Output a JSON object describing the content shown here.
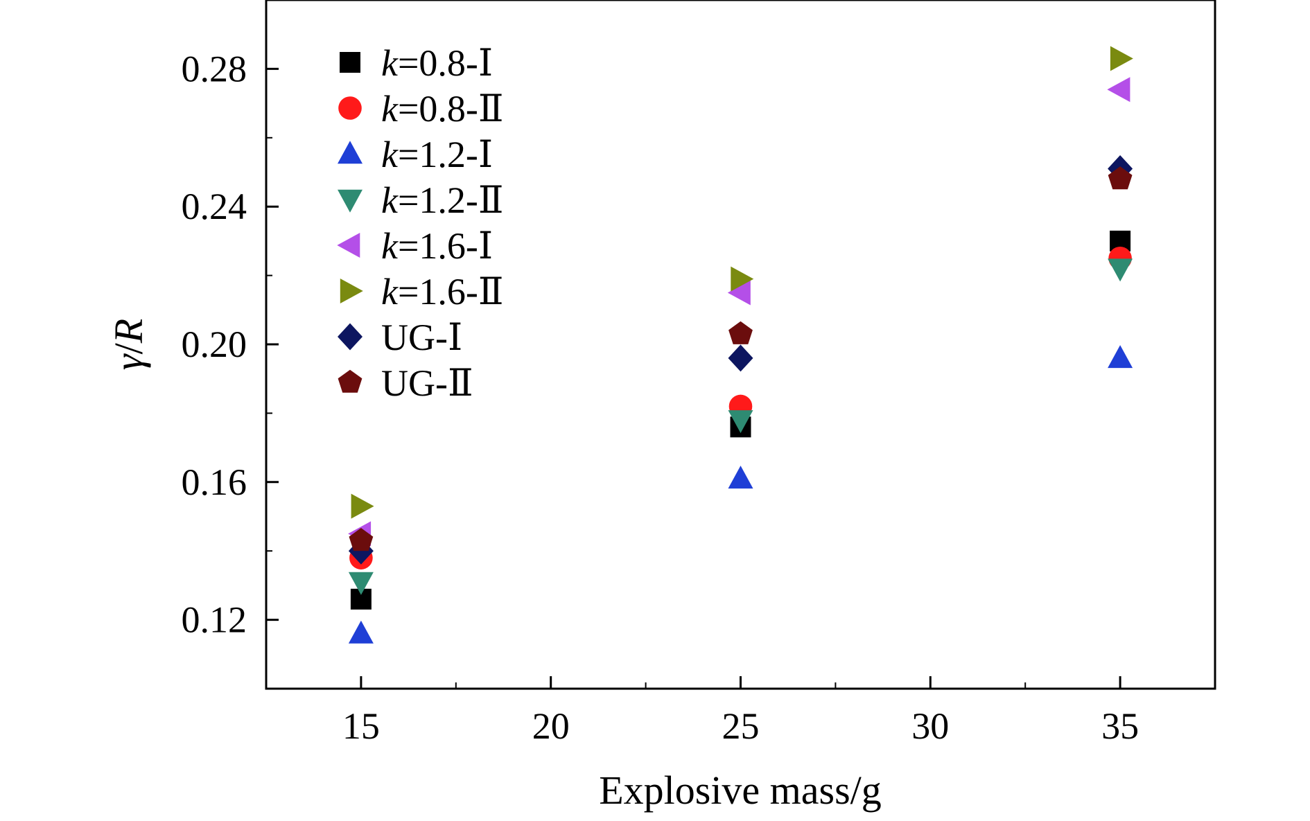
{
  "chart_data": {
    "type": "scatter",
    "title": "",
    "xlabel": "Explosive mass/g",
    "ylabel": "γ/R",
    "ylabel_parts": {
      "symbol": "γ",
      "sep": "/",
      "var": "R"
    },
    "xlim": [
      12.5,
      37.5
    ],
    "ylim": [
      0.1,
      0.3
    ],
    "xticks": [
      15,
      20,
      25,
      30,
      35
    ],
    "xtick_labels": [
      "15",
      "20",
      "25",
      "30",
      "35"
    ],
    "yticks": [
      0.12,
      0.16,
      0.2,
      0.24,
      0.28
    ],
    "ytick_labels": [
      "0.12",
      "0.16",
      "0.20",
      "0.24",
      "0.28"
    ],
    "grid": false,
    "legend_position": "top-left",
    "x": [
      15,
      25,
      35
    ],
    "series": [
      {
        "name": "k=0.8-Ⅰ",
        "label_k": "k",
        "label_rest": "=0.8-Ⅰ",
        "marker": "square",
        "color": "#000000",
        "values": [
          0.126,
          0.176,
          0.23
        ]
      },
      {
        "name": "k=0.8-Ⅱ",
        "label_k": "k",
        "label_rest": "=0.8-Ⅱ",
        "marker": "circle",
        "color": "#ff1a1a",
        "values": [
          0.138,
          0.182,
          0.225
        ]
      },
      {
        "name": "k=1.2-Ⅰ",
        "label_k": "k",
        "label_rest": "=1.2-Ⅰ",
        "marker": "triangle-up",
        "color": "#1f3fd6",
        "values": [
          0.116,
          0.161,
          0.196
        ]
      },
      {
        "name": "k=1.2-Ⅱ",
        "label_k": "k",
        "label_rest": "=1.2-Ⅱ",
        "marker": "triangle-down",
        "color": "#2e8b72",
        "values": [
          0.131,
          0.178,
          0.222
        ]
      },
      {
        "name": "k=1.6-Ⅰ",
        "label_k": "k",
        "label_rest": "=1.6-Ⅰ",
        "marker": "triangle-left",
        "color": "#b44fe8",
        "values": [
          0.145,
          0.215,
          0.274
        ]
      },
      {
        "name": "k=1.6-Ⅱ",
        "label_k": "k",
        "label_rest": "=1.6-Ⅱ",
        "marker": "triangle-right",
        "color": "#7a8a10",
        "values": [
          0.153,
          0.219,
          0.283
        ]
      },
      {
        "name": "UG-Ⅰ",
        "label_k": "",
        "label_rest": "UG-Ⅰ",
        "marker": "diamond",
        "color": "#0d1660",
        "values": [
          0.14,
          0.196,
          0.251
        ]
      },
      {
        "name": "UG-Ⅱ",
        "label_k": "",
        "label_rest": "UG-Ⅱ",
        "marker": "pentagon",
        "color": "#6b0d0d",
        "values": [
          0.143,
          0.203,
          0.248
        ]
      }
    ]
  }
}
